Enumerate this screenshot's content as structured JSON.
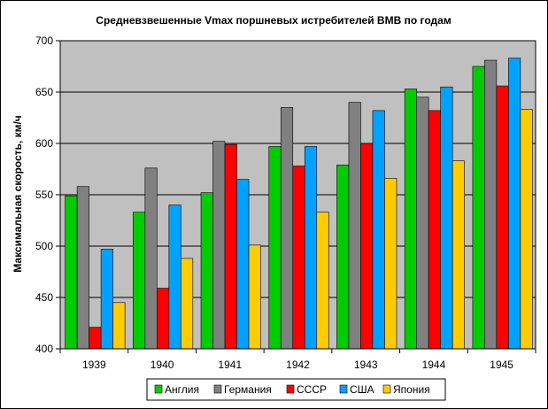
{
  "colors": {
    "plot_bg": "#c0c0c0",
    "grid": "#000000",
    "frame": "#000000"
  },
  "chart_data": {
    "type": "bar",
    "title": "Средневзвешенные Vmax поршневых истребителей ВМВ по годам",
    "xlabel": "",
    "ylabel": "Максимальная скорость, км/ч",
    "ylim": [
      400,
      700
    ],
    "yticks": [
      400,
      450,
      500,
      550,
      600,
      650,
      700
    ],
    "grid": true,
    "legend_position": "bottom",
    "categories": [
      "1939",
      "1940",
      "1941",
      "1942",
      "1943",
      "1944",
      "1945"
    ],
    "series": [
      {
        "name": "Англия",
        "color": "#00cc00",
        "values": [
          549,
          533,
          552,
          597,
          579,
          653,
          675
        ]
      },
      {
        "name": "Германия",
        "color": "#808080",
        "values": [
          558,
          576,
          602,
          635,
          640,
          645,
          681
        ]
      },
      {
        "name": "СССР",
        "color": "#ff0000",
        "values": [
          421,
          459,
          599,
          578,
          600,
          632,
          656
        ]
      },
      {
        "name": "США",
        "color": "#00a2ff",
        "values": [
          497,
          540,
          565,
          597,
          632,
          655,
          683
        ]
      },
      {
        "name": "Япония",
        "color": "#ffcc00",
        "values": [
          445,
          488,
          501,
          533,
          566,
          583,
          633
        ]
      }
    ]
  }
}
